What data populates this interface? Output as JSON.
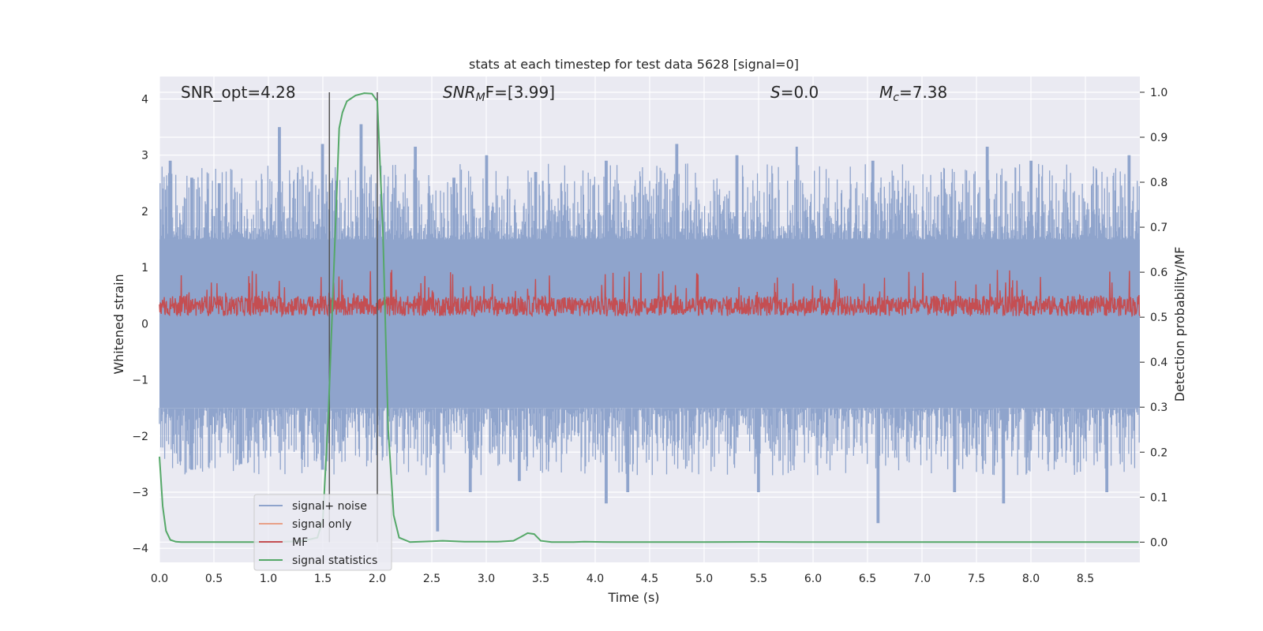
{
  "chart_data": {
    "type": "line",
    "title": "stats at each timestep for test data 5628 [signal=0]",
    "xlabel": "Time (s)",
    "ylabel": "Whitened strain",
    "y2label": "Detection probability/MF",
    "xlim": [
      0.0,
      9.0
    ],
    "ylim": [
      -4.25,
      4.4
    ],
    "y2lim": [
      -0.045,
      1.035
    ],
    "xticks": [
      "0.0",
      "0.5",
      "1.0",
      "1.5",
      "2.0",
      "2.5",
      "3.0",
      "3.5",
      "4.0",
      "4.5",
      "5.0",
      "5.5",
      "6.0",
      "6.5",
      "7.0",
      "7.5",
      "8.0",
      "8.5"
    ],
    "yticks": [
      "4",
      "3",
      "2",
      "1",
      "0",
      "−1",
      "−2",
      "−3",
      "−4"
    ],
    "y2ticks": [
      "1.0",
      "0.9",
      "0.8",
      "0.7",
      "0.6",
      "0.5",
      "0.4",
      "0.3",
      "0.2",
      "0.1",
      "0.0"
    ],
    "annotations": {
      "snr_opt": "SNR_opt=4.28",
      "snr_mf_label": "SNR",
      "snr_mf_sub": "M",
      "snr_mf_rest": "F=[3.99]",
      "s_label": "S",
      "s_value": "=0.0",
      "mc_label": "M",
      "mc_sub": "c",
      "mc_value": "=7.38"
    },
    "legend": {
      "position": "lower-left",
      "entries": [
        {
          "label": "signal+ noise",
          "color": "#8fa4cc"
        },
        {
          "label": "signal only",
          "color": "#e8a088"
        },
        {
          "label": "MF",
          "color": "#c44e52"
        },
        {
          "label": "signal statistics",
          "color": "#55a868"
        }
      ]
    },
    "vlines": [
      1.56,
      2.0
    ],
    "noise_envelope": {
      "upper_base": 1.5,
      "lower_base": -1.5,
      "upper_peaks": [
        [
          0.1,
          2.9
        ],
        [
          0.3,
          2.6
        ],
        [
          0.55,
          2.5
        ],
        [
          1.1,
          3.5
        ],
        [
          1.5,
          3.2
        ],
        [
          1.85,
          3.55
        ],
        [
          2.35,
          3.15
        ],
        [
          2.7,
          2.6
        ],
        [
          3.0,
          3.0
        ],
        [
          3.45,
          2.7
        ],
        [
          4.1,
          2.9
        ],
        [
          4.75,
          3.2
        ],
        [
          5.3,
          3.0
        ],
        [
          5.85,
          3.15
        ],
        [
          6.55,
          2.9
        ],
        [
          7.6,
          3.15
        ],
        [
          8.0,
          2.9
        ],
        [
          8.9,
          3.0
        ]
      ],
      "lower_peaks": [
        [
          0.3,
          -2.6
        ],
        [
          0.75,
          -2.5
        ],
        [
          1.5,
          -2.6
        ],
        [
          2.55,
          -3.7
        ],
        [
          2.85,
          -3.0
        ],
        [
          3.3,
          -2.8
        ],
        [
          4.1,
          -3.2
        ],
        [
          4.3,
          -3.0
        ],
        [
          5.5,
          -3.0
        ],
        [
          6.6,
          -3.55
        ],
        [
          7.3,
          -3.0
        ],
        [
          7.75,
          -3.2
        ],
        [
          8.7,
          -3.0
        ]
      ]
    },
    "series": [
      {
        "name": "signal statistics",
        "axis": "right",
        "color": "#55a868",
        "x": [
          0.0,
          0.03,
          0.06,
          0.1,
          0.15,
          0.2,
          0.3,
          0.5,
          1.0,
          1.3,
          1.45,
          1.5,
          1.55,
          1.6,
          1.65,
          1.68,
          1.72,
          1.8,
          1.88,
          1.95,
          2.0,
          2.05,
          2.1,
          2.15,
          2.2,
          2.3,
          2.5,
          2.6,
          2.8,
          3.1,
          3.25,
          3.32,
          3.38,
          3.44,
          3.5,
          3.6,
          3.8,
          3.9,
          4.2,
          5.0,
          5.5,
          6.0,
          7.0,
          8.0,
          8.99
        ],
        "y": [
          0.19,
          0.08,
          0.025,
          0.005,
          0.001,
          0.0,
          0.0,
          0.0,
          0.0,
          0.002,
          0.01,
          0.05,
          0.28,
          0.6,
          0.92,
          0.955,
          0.98,
          0.993,
          0.998,
          0.997,
          0.98,
          0.7,
          0.25,
          0.06,
          0.01,
          0.0,
          0.002,
          0.003,
          0.001,
          0.001,
          0.003,
          0.012,
          0.02,
          0.018,
          0.003,
          0.0,
          0.0,
          0.001,
          0.0,
          0.0,
          0.0005,
          0.0,
          0.0,
          0.0,
          0.0
        ]
      }
    ]
  }
}
